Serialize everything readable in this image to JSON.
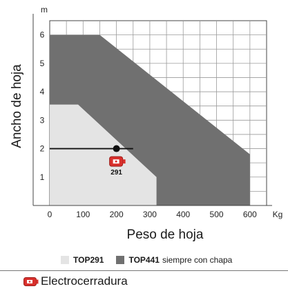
{
  "chart_data": {
    "type": "area",
    "xlabel": "Peso de hoja",
    "ylabel": "Ancho de hoja",
    "x_unit": "Kg",
    "y_unit": "m",
    "xlim": [
      0,
      650
    ],
    "ylim": [
      0,
      6.5
    ],
    "x_ticks": [
      0,
      100,
      200,
      300,
      400,
      500,
      600
    ],
    "y_ticks": [
      1,
      2,
      3,
      4,
      5,
      6
    ],
    "grid": true,
    "series": [
      {
        "name": "TOP441",
        "extra": "siempre con chapa",
        "color": "#707070",
        "points": [
          [
            0,
            0
          ],
          [
            0,
            6
          ],
          [
            150,
            6
          ],
          [
            600,
            1.8
          ],
          [
            600,
            0
          ]
        ]
      },
      {
        "name": "TOP291",
        "color": "#e4e4e4",
        "points": [
          [
            0,
            0
          ],
          [
            0,
            3.55
          ],
          [
            85,
            3.55
          ],
          [
            320,
            1.0
          ],
          [
            320,
            0
          ]
        ]
      }
    ],
    "reference_line": {
      "y": 2,
      "x_from": 0,
      "x_to": 250
    },
    "marker": {
      "x": 200,
      "y": 2
    },
    "annotations": [
      {
        "label": "291",
        "x": 200,
        "y": 1.5
      }
    ]
  },
  "legend": {
    "items": [
      {
        "name": "TOP291",
        "extra": "",
        "color": "#e4e4e4"
      },
      {
        "name": "TOP441",
        "extra": "siempre con chapa",
        "color": "#707070"
      }
    ],
    "lock_label": "Electrocerradura",
    "lock_icon": "electric-lock-icon",
    "lock_color": "#d9302c"
  }
}
